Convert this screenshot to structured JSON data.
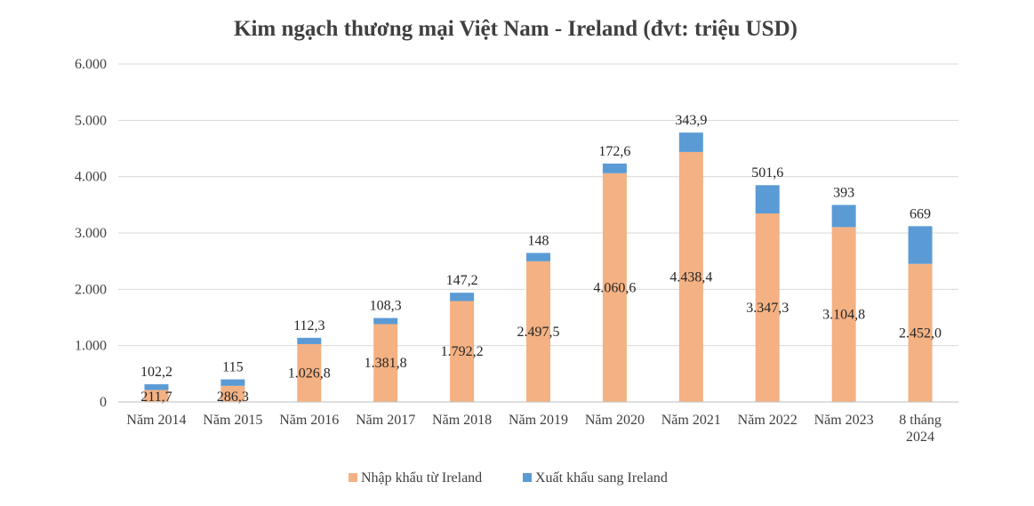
{
  "chart_data": {
    "type": "bar",
    "stacked": true,
    "title": "Kim ngạch thương mại Việt Nam - Ireland (đvt: triệu USD)",
    "xlabel": "",
    "ylabel": "",
    "ylim": [
      0,
      6000
    ],
    "yticks": [
      0,
      1000,
      2000,
      3000,
      4000,
      5000,
      6000
    ],
    "ytick_labels": [
      "0",
      "1.000",
      "2.000",
      "3.000",
      "4.000",
      "5.000",
      "6.000"
    ],
    "grid": true,
    "legend_position": "bottom",
    "categories": [
      [
        "Năm 2014"
      ],
      [
        "Năm 2015"
      ],
      [
        "Năm 2016"
      ],
      [
        "Năm 2017"
      ],
      [
        "Năm 2018"
      ],
      [
        "Năm 2019"
      ],
      [
        "Năm 2020"
      ],
      [
        "Năm 2021"
      ],
      [
        "Năm 2022"
      ],
      [
        "Năm 2023"
      ],
      [
        "8 tháng",
        "2024"
      ]
    ],
    "series": [
      {
        "name": "Nhập khẩu từ Ireland",
        "color": "#f4b183",
        "values": [
          211.7,
          286.3,
          1026.8,
          1381.8,
          1792.2,
          2497.5,
          4060.6,
          4438.4,
          3347.3,
          3104.8,
          2452.0
        ],
        "labels": [
          "211,7",
          "286,3",
          "1.026,8",
          "1.381,8",
          "1.792,2",
          "2.497,5",
          "4.060,6",
          "4.438,4",
          "3.347,3",
          "3.104,8",
          "2.452,0"
        ]
      },
      {
        "name": "Xuất khẩu sang Ireland",
        "color": "#5b9bd5",
        "values": [
          102.2,
          115,
          112.3,
          108.3,
          147.2,
          148,
          172.6,
          343.9,
          501.6,
          393,
          669
        ],
        "labels": [
          "102,2",
          "115",
          "112,3",
          "108,3",
          "147,2",
          "148",
          "172,6",
          "343,9",
          "501,6",
          "393",
          "669"
        ]
      }
    ]
  }
}
